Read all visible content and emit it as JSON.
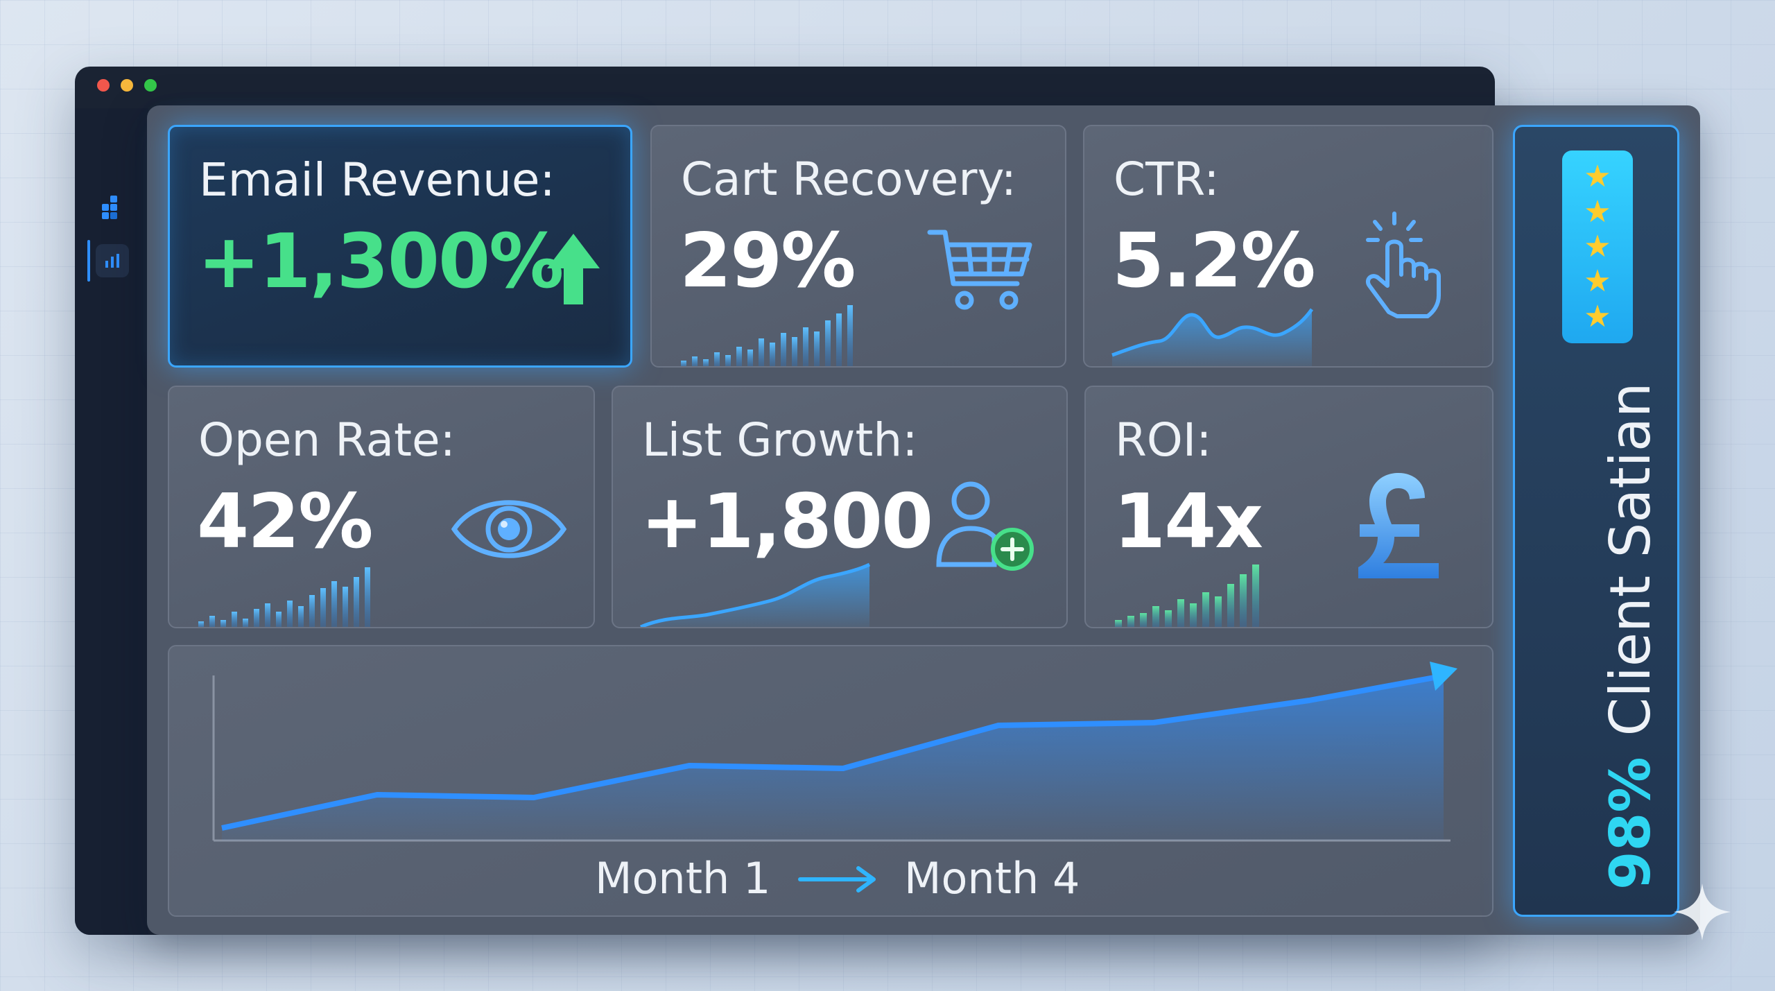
{
  "window": {
    "controls": [
      "close",
      "minimize",
      "maximize"
    ]
  },
  "sidebar": {
    "items": [
      {
        "icon": "logo-icon"
      },
      {
        "icon": "bar-chart-icon",
        "active": true
      }
    ]
  },
  "cards": {
    "email_revenue": {
      "label": "Email Revenue:",
      "value": "+1,300%",
      "icon": "arrow-up-icon",
      "accent": "#47e08a"
    },
    "cart_recovery": {
      "label": "Cart Recovery:",
      "value": "29%",
      "icon": "shopping-cart-icon"
    },
    "ctr": {
      "label": "CTR:",
      "value": "5.2%",
      "icon": "pointer-click-icon"
    },
    "open_rate": {
      "label": "Open Rate:",
      "value": "42%",
      "icon": "eye-icon"
    },
    "list_growth": {
      "label": "List Growth:",
      "value": "+1,800",
      "icon": "user-add-icon"
    },
    "roi": {
      "label": "ROI:",
      "value": "14x",
      "icon": "pound-icon"
    }
  },
  "trend": {
    "start_label": "Month 1",
    "end_label": "Month 4",
    "accent": "#2f8fff"
  },
  "satisfaction": {
    "percent": "98%",
    "label": "Client Satian",
    "stars": 5,
    "accent": "#2fd6f2"
  },
  "colors": {
    "accent_blue": "#3ba6ff",
    "positive": "#47e08a",
    "star": "#ffcc2e"
  }
}
